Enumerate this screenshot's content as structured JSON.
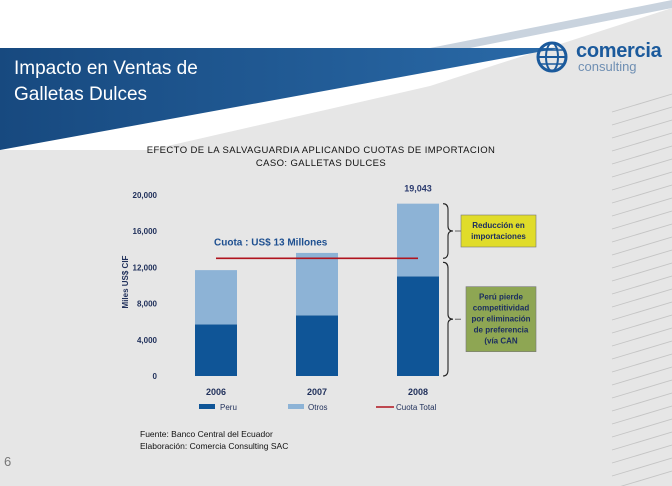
{
  "slide": {
    "title_line1": "Impacto en Ventas de",
    "title_line2": "Galletas Dulces",
    "logo_name": "comercia",
    "logo_sub": "consulting",
    "page_number": "6",
    "source": "Fuente: Banco Central del Ecuador",
    "elaboration": "Elaboración: Comercia Consulting SAC"
  },
  "colors": {
    "header_blue": "#1a4f88",
    "peru": "#0f5597",
    "otros": "#8db3d6",
    "cuota": "#b0141e",
    "yellow_box": "#e0dc2a",
    "green_box": "#8ea653",
    "logo_blue": "#1b5a9c"
  },
  "chart_data": {
    "type": "bar",
    "stacked": true,
    "title_line1": "EFECTO DE LA SALVAGUARDIA APLICANDO CUOTAS DE IMPORTACION",
    "title_line2": "CASO: GALLETAS DULCES",
    "ylabel": "Miles US$ CIF",
    "yticks": [
      {
        "value": 0,
        "label": "0"
      },
      {
        "value": 4000,
        "label": "4,000"
      },
      {
        "value": 8000,
        "label": "8,000"
      },
      {
        "value": 12000,
        "label": "12,000"
      },
      {
        "value": 16000,
        "label": "16,000"
      },
      {
        "value": 20000,
        "label": "20,000"
      }
    ],
    "ylim": [
      0,
      20000
    ],
    "categories": [
      "2006",
      "2007",
      "2008"
    ],
    "series": [
      {
        "name": "Peru",
        "values": [
          5700,
          6700,
          11000
        ]
      },
      {
        "name": "Otros",
        "values": [
          6000,
          6900,
          8043
        ]
      }
    ],
    "total_label": "19,043",
    "cuota_value": 13000,
    "cuota_label": "Cuota : US$ 13 Millones",
    "cuota_legend": "Cuota Total",
    "annotation_yellow": [
      "Reducción en",
      "importaciones"
    ],
    "annotation_green": [
      "Perú pierde",
      "competitividad",
      "por eliminación",
      "de preferencia",
      "(vía CAN"
    ]
  }
}
